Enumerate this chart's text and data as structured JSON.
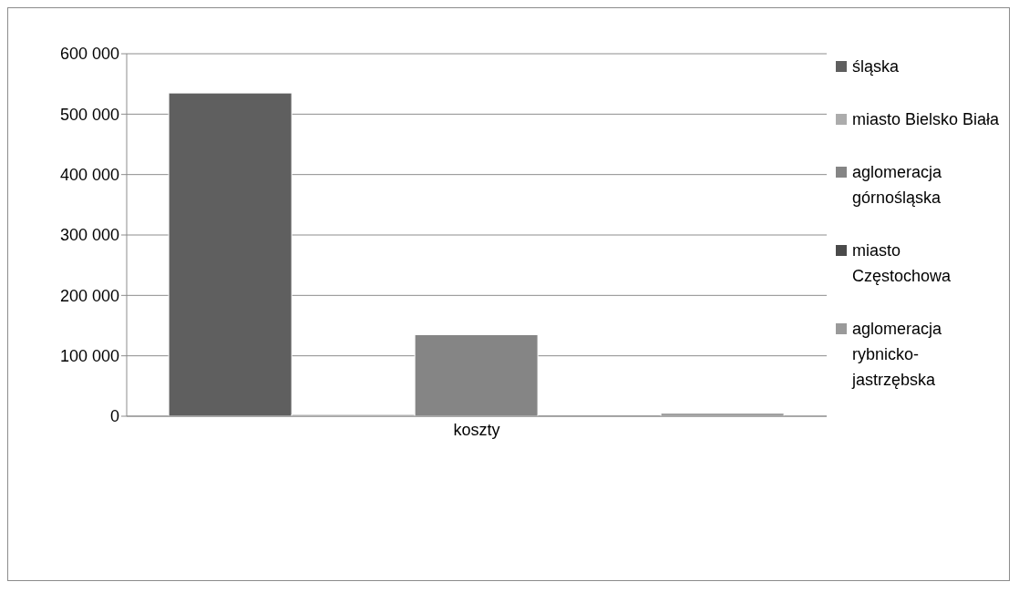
{
  "chart_data": {
    "type": "bar",
    "categories": [
      "koszty"
    ],
    "series": [
      {
        "name": "śląska",
        "color": "#5f5f5f",
        "values": [
          535000
        ]
      },
      {
        "name": "miasto Bielsko Biała",
        "color": "#acacac",
        "values": [
          3000
        ]
      },
      {
        "name": "aglomeracja górnośląska",
        "color": "#858585",
        "values": [
          135000
        ]
      },
      {
        "name": "miasto Częstochowa",
        "color": "#4a4a4a",
        "values": [
          2000
        ]
      },
      {
        "name": "aglomeracja rybnicko-jastrzębska",
        "color": "#9a9a9a",
        "values": [
          5000
        ]
      }
    ],
    "ylim": [
      0,
      600000
    ],
    "yticks": [
      {
        "value": 0,
        "label": "0"
      },
      {
        "value": 100000,
        "label": "100 000"
      },
      {
        "value": 200000,
        "label": "200 000"
      },
      {
        "value": 300000,
        "label": "300 000"
      },
      {
        "value": 400000,
        "label": "400 000"
      },
      {
        "value": 500000,
        "label": "500 000"
      },
      {
        "value": 600000,
        "label": "600 000"
      }
    ],
    "grid": "y",
    "legend": "right"
  }
}
